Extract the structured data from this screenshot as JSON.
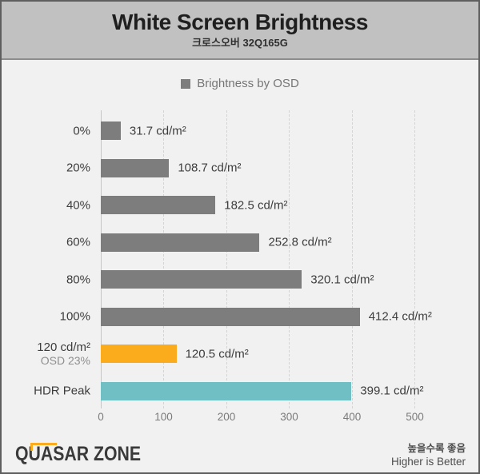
{
  "header": {
    "title": "White Screen Brightness",
    "subtitle": "크로스오버 32Q165G"
  },
  "legend": {
    "label": "Brightness by OSD",
    "swatch_color": "#7d7d7d"
  },
  "chart_data": {
    "type": "bar",
    "orientation": "horizontal",
    "title": "White Screen Brightness",
    "subtitle": "크로스오버 32Q165G",
    "legend": [
      "Brightness by OSD"
    ],
    "categories": [
      "0%",
      "20%",
      "40%",
      "60%",
      "80%",
      "100%",
      [
        "120 cd/m²",
        "OSD 23%"
      ],
      "HDR Peak"
    ],
    "values": [
      31.7,
      108.7,
      182.5,
      252.8,
      320.1,
      412.4,
      120.5,
      399.1
    ],
    "value_labels": [
      "31.7 cd/m²",
      "108.7 cd/m²",
      "182.5 cd/m²",
      "252.8 cd/m²",
      "320.1 cd/m²",
      "412.4 cd/m²",
      "120.5 cd/m²",
      "399.1 cd/m²"
    ],
    "bar_colors": [
      "#7d7d7d",
      "#7d7d7d",
      "#7d7d7d",
      "#7d7d7d",
      "#7d7d7d",
      "#7d7d7d",
      "#fbac1d",
      "#6fbfc4"
    ],
    "unit": "cd/m²",
    "xlim": [
      0,
      500
    ],
    "x_ticks": [
      0,
      100,
      200,
      300,
      400,
      500
    ],
    "grid": "vertical-dashed"
  },
  "footer": {
    "logo_text": "QUASAR ZONE",
    "note_ko": "높을수록 좋음",
    "note_en": "Higher is Better"
  },
  "colors": {
    "frame_border": "#5f5f5f",
    "header_bg": "#c1c1c1",
    "header_separator": "#8d8d8d",
    "body_bg": "#f1f1f1",
    "bar_gray": "#7d7d7d",
    "bar_orange": "#fbac1d",
    "bar_teal": "#6fbfc4",
    "gridline": "#d4d4d4",
    "text_dark": "#3d3d3d",
    "text_muted": "#757575"
  }
}
